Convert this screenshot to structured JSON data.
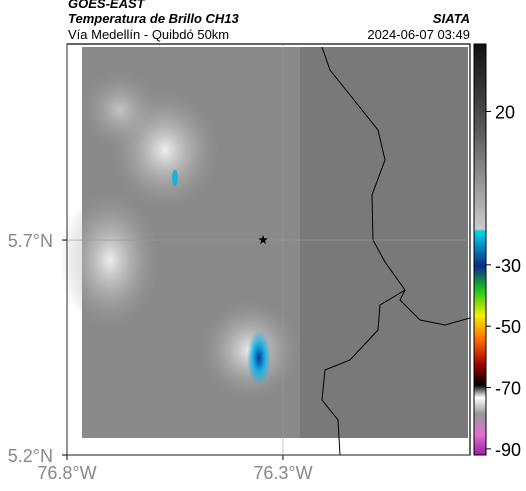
{
  "header": {
    "source": "GOES-EAST",
    "product": "Temperatura de Brillo CH13",
    "route": "Vía Medellín - Quibdó 50km",
    "org": "SIATA",
    "datetime": "2024-06-07 03:49"
  },
  "chart_data": {
    "type": "map",
    "xlim": [
      -76.8,
      -75.867
    ],
    "ylim": [
      5.2,
      6.156
    ],
    "xticks": [
      {
        "value": -76.8,
        "label": "76.8°W"
      },
      {
        "value": -76.3,
        "label": "76.3°W"
      }
    ],
    "yticks": [
      {
        "value": 5.2,
        "label": "5.2°N"
      },
      {
        "value": 5.7,
        "label": "5.7°N"
      }
    ],
    "grid": true,
    "marker": {
      "lon": -76.346,
      "lat": 5.7
    },
    "colorbar": {
      "lim": [
        -92,
        42
      ],
      "ticks": [
        20,
        -30,
        -50,
        -70,
        -90
      ]
    }
  }
}
